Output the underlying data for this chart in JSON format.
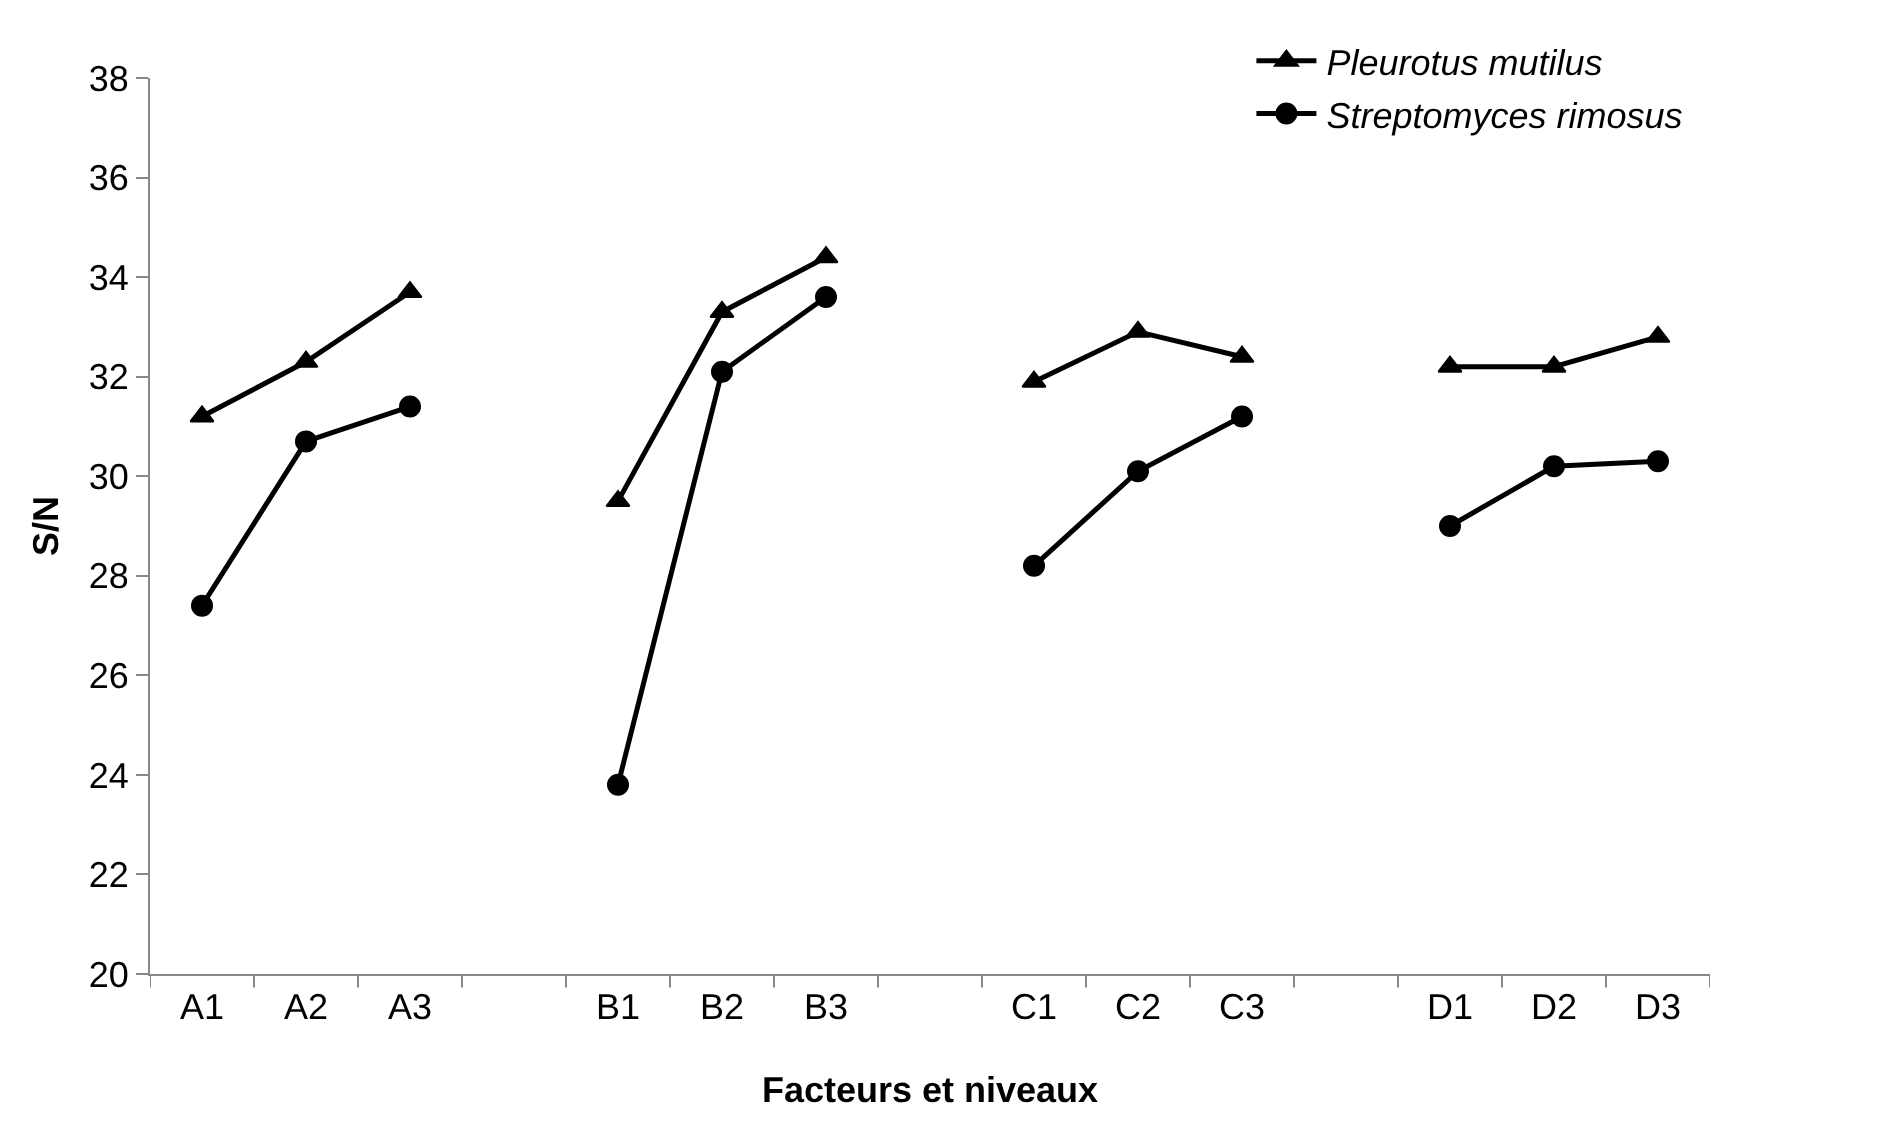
{
  "chart_data": {
    "type": "line",
    "xlabel": "Facteurs et niveaux",
    "ylabel": "S/N",
    "categories": [
      "A1",
      "A2",
      "A3",
      null,
      "B1",
      "B2",
      "B3",
      null,
      "C1",
      "C2",
      "C3",
      null,
      "D1",
      "D2",
      "D3"
    ],
    "series": [
      {
        "name": "Pleurotus mutilus",
        "color": "#000000",
        "marker": "triangle",
        "values": [
          31.2,
          32.3,
          33.7,
          null,
          29.5,
          33.3,
          34.4,
          null,
          31.9,
          32.9,
          32.4,
          null,
          32.2,
          32.2,
          32.8
        ]
      },
      {
        "name": "Streptomyces rimosus",
        "color": "#000000",
        "marker": "circle",
        "values": [
          27.4,
          30.7,
          31.4,
          null,
          23.8,
          32.1,
          33.6,
          null,
          28.2,
          30.1,
          31.2,
          null,
          29.0,
          30.2,
          30.3
        ]
      }
    ],
    "ylim": [
      20,
      38
    ],
    "yticks": [
      20,
      22,
      24,
      26,
      28,
      30,
      32,
      34,
      36,
      38
    ],
    "grid": false,
    "legend": "top right",
    "line_style": "solid"
  }
}
